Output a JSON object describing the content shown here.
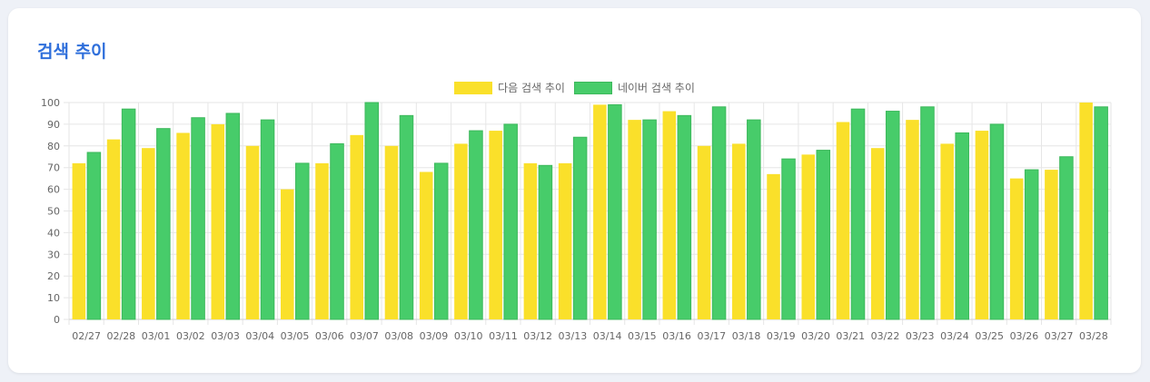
{
  "card": {
    "title": "검색 추이"
  },
  "colors": {
    "daum": "#fae02a",
    "naver": "#47cc6a",
    "naver_border": "#3db85c",
    "grid": "#e6e6e6",
    "title": "#2f6fdb"
  },
  "chart_data": {
    "type": "bar",
    "categories": [
      "02/27",
      "02/28",
      "03/01",
      "03/02",
      "03/03",
      "03/04",
      "03/05",
      "03/06",
      "03/07",
      "03/08",
      "03/09",
      "03/10",
      "03/11",
      "03/12",
      "03/13",
      "03/14",
      "03/15",
      "03/16",
      "03/17",
      "03/18",
      "03/19",
      "03/20",
      "03/21",
      "03/22",
      "03/23",
      "03/24",
      "03/25",
      "03/26",
      "03/27",
      "03/28"
    ],
    "series": [
      {
        "name": "다음 검색 추이",
        "values": [
          72,
          83,
          79,
          86,
          90,
          80,
          60,
          72,
          85,
          80,
          68,
          81,
          87,
          72,
          72,
          99,
          92,
          96,
          80,
          81,
          67,
          76,
          91,
          79,
          92,
          81,
          87,
          65,
          69,
          100
        ]
      },
      {
        "name": "네이버 검색 추이",
        "values": [
          77,
          97,
          88,
          93,
          95,
          92,
          72,
          81,
          100,
          94,
          72,
          87,
          90,
          71,
          84,
          99,
          92,
          94,
          98,
          92,
          74,
          78,
          97,
          96,
          98,
          86,
          90,
          69,
          75,
          98
        ]
      }
    ],
    "ylim": [
      0,
      100
    ],
    "yticks": [
      0,
      10,
      20,
      30,
      40,
      50,
      60,
      70,
      80,
      90,
      100
    ],
    "grid": true,
    "legend": "top-center"
  }
}
